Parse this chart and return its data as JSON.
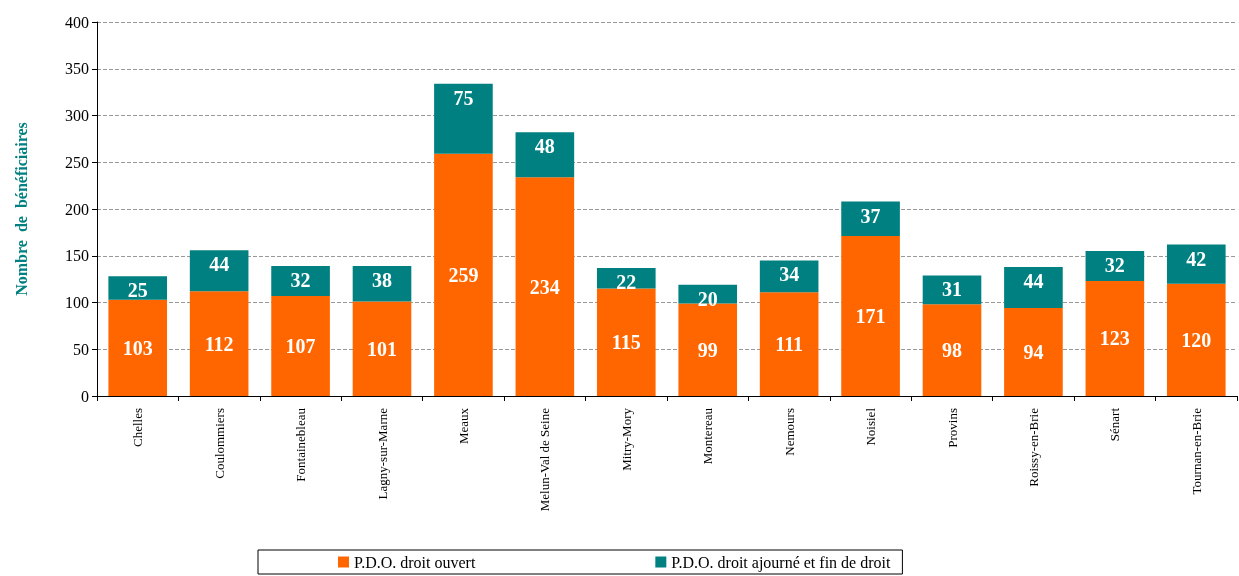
{
  "chart_data": {
    "type": "bar",
    "stacked": true,
    "ylabel": "Nombre  de  bénéficiaires",
    "categories": [
      "Chelles",
      "Coulommiers",
      "Fontainebleau",
      "Lagny-sur-Marne",
      "Meaux",
      "Melun-Val de Seine",
      "Mitry-Mory",
      "Montereau",
      "Nemours",
      "Noisiel",
      "Provins",
      "Roissy-en-Brie",
      "Sénart",
      "Tournan-en-Brie"
    ],
    "series": [
      {
        "name": "P.D.O. droit ouvert",
        "color": "#ff6600",
        "values": [
          103,
          112,
          107,
          101,
          259,
          234,
          115,
          99,
          111,
          171,
          98,
          94,
          123,
          120
        ]
      },
      {
        "name": "P.D.O. droit ajourné et fin de droit",
        "color": "#008080",
        "values": [
          25,
          44,
          32,
          38,
          75,
          48,
          22,
          20,
          34,
          37,
          31,
          44,
          32,
          42
        ]
      }
    ],
    "ylim": [
      0,
      400
    ],
    "yticks": [
      0,
      50,
      100,
      150,
      200,
      250,
      300,
      350,
      400
    ],
    "grid": "y",
    "legend": "bottom",
    "data_labels": true
  }
}
